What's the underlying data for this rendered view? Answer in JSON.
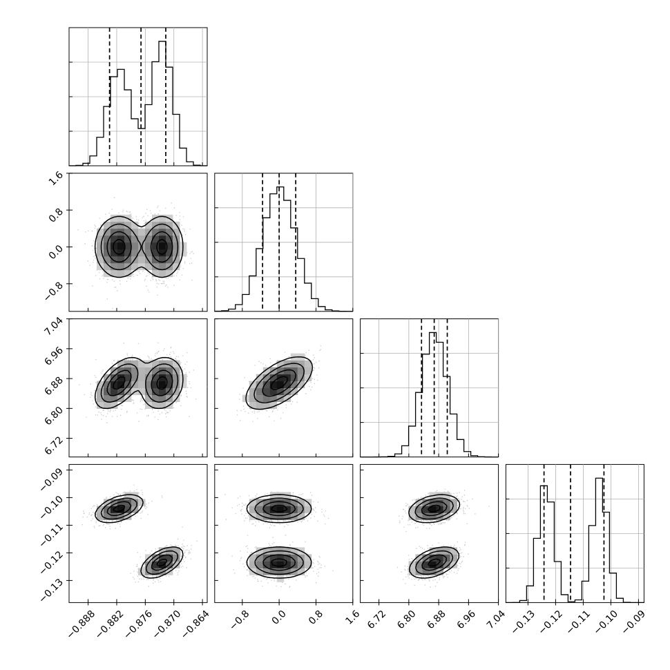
{
  "chart_data": {
    "type": "corner",
    "parameters": [
      {
        "range": [
          -0.892,
          -0.863
        ],
        "ticks": [
          -0.888,
          -0.882,
          -0.876,
          -0.87,
          -0.864
        ],
        "tick_labels": [
          "−0.888",
          "−0.882",
          "−0.876",
          "−0.870",
          "−0.864"
        ],
        "quantiles": [
          -0.8835,
          -0.8769,
          -0.8717
        ],
        "modes": [
          {
            "center": -0.8815,
            "sigma": 0.0025,
            "weight": 0.47
          },
          {
            "center": -0.8725,
            "sigma": 0.0022,
            "weight": 0.53
          }
        ]
      },
      {
        "range": [
          -1.4,
          1.6
        ],
        "ticks": [
          -0.8,
          0.0,
          0.8,
          1.6
        ],
        "tick_labels": [
          "−0.8",
          "0.0",
          "0.8",
          "1.6"
        ],
        "quantiles": [
          -0.36,
          0.0,
          0.36
        ],
        "modes": [
          {
            "center": 0.0,
            "sigma": 0.36,
            "weight": 1.0
          }
        ]
      },
      {
        "range": [
          6.67,
          7.04
        ],
        "ticks": [
          6.72,
          6.8,
          6.88,
          6.96,
          7.04
        ],
        "tick_labels": [
          "6.72",
          "6.80",
          "6.88",
          "6.96",
          "7.04"
        ],
        "quantiles": [
          6.834,
          6.868,
          6.903
        ],
        "modes": [
          {
            "center": 6.868,
            "sigma": 0.035,
            "weight": 1.0
          }
        ]
      },
      {
        "range": [
          -0.138,
          -0.088
        ],
        "ticks": [
          -0.13,
          -0.12,
          -0.11,
          -0.1,
          -0.09
        ],
        "tick_labels": [
          "−0.13",
          "−0.12",
          "−0.11",
          "−0.10",
          "−0.09"
        ],
        "quantiles": [
          -0.1242,
          -0.1146,
          -0.1025
        ],
        "modes": [
          {
            "center": -0.1235,
            "sigma": 0.0028,
            "weight": 0.5
          },
          {
            "center": -0.104,
            "sigma": 0.0027,
            "weight": 0.5
          }
        ]
      }
    ],
    "pairs": [
      {
        "row": 1,
        "col": 0,
        "blobs": [
          {
            "x": -0.8815,
            "y": 0.0,
            "sx": 0.0025,
            "sy": 0.33,
            "rho": 0.0
          },
          {
            "x": -0.8725,
            "y": 0.0,
            "sx": 0.0022,
            "sy": 0.33,
            "rho": 0.0
          }
        ]
      },
      {
        "row": 2,
        "col": 0,
        "blobs": [
          {
            "x": -0.8815,
            "y": 6.868,
            "sx": 0.0025,
            "sy": 0.034,
            "rho": 0.55
          },
          {
            "x": -0.8725,
            "y": 6.868,
            "sx": 0.0022,
            "sy": 0.034,
            "rho": 0.15
          }
        ]
      },
      {
        "row": 2,
        "col": 1,
        "blobs": [
          {
            "x": 0.0,
            "y": 6.868,
            "sx": 0.36,
            "sy": 0.035,
            "rho": 0.6
          }
        ]
      },
      {
        "row": 3,
        "col": 0,
        "blobs": [
          {
            "x": -0.8815,
            "y": -0.104,
            "sx": 0.0025,
            "sy": 0.0025,
            "rho": 0.45
          },
          {
            "x": -0.8725,
            "y": -0.1235,
            "sx": 0.0022,
            "sy": 0.0028,
            "rho": 0.55
          }
        ]
      },
      {
        "row": 3,
        "col": 1,
        "blobs": [
          {
            "x": 0.0,
            "y": -0.104,
            "sx": 0.35,
            "sy": 0.0025,
            "rho": 0.0
          },
          {
            "x": 0.0,
            "y": -0.1235,
            "sx": 0.35,
            "sy": 0.0028,
            "rho": 0.0
          }
        ]
      },
      {
        "row": 3,
        "col": 2,
        "blobs": [
          {
            "x": 6.868,
            "y": -0.104,
            "sx": 0.034,
            "sy": 0.0025,
            "rho": 0.3
          },
          {
            "x": 6.868,
            "y": -0.1235,
            "sx": 0.033,
            "sy": 0.0028,
            "rho": 0.45
          }
        ]
      }
    ],
    "contour_levels_sigma": [
      0.5,
      1.0,
      1.5,
      2.0
    ],
    "histogram_bins": 20,
    "grid": true,
    "title": "",
    "xlabel": "",
    "ylabel": ""
  }
}
